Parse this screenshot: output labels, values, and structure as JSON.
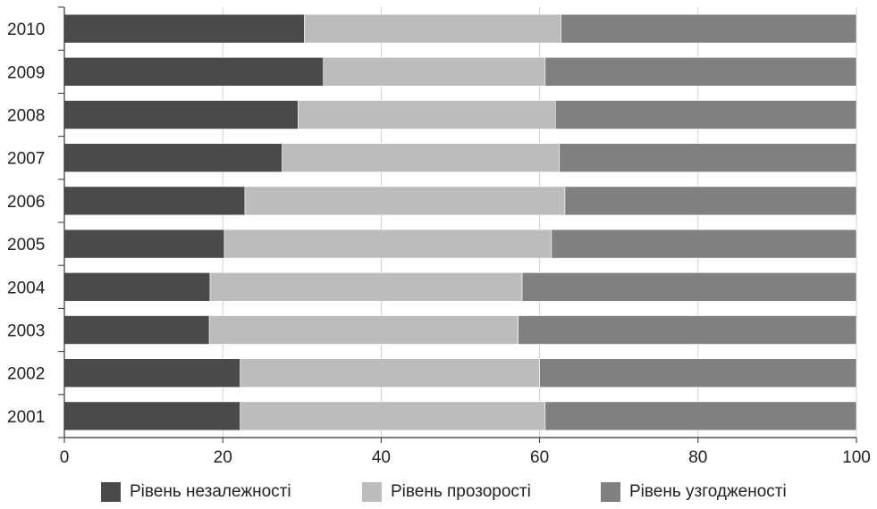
{
  "chart_data": {
    "type": "bar",
    "orientation": "horizontal",
    "stacked": true,
    "categories": [
      "2010",
      "2009",
      "2008",
      "2007",
      "2006",
      "2005",
      "2004",
      "2003",
      "2002",
      "2001"
    ],
    "series": [
      {
        "name": "Рівень незалежності",
        "color": "#4a4a4a",
        "values": [
          30.3,
          32.7,
          29.5,
          27.5,
          22.8,
          20.2,
          18.4,
          18.3,
          22.2,
          22.2
        ]
      },
      {
        "name": "Рівень прозорості",
        "color": "#bcbcbc",
        "values": [
          32.4,
          28.0,
          32.5,
          35.0,
          40.4,
          41.3,
          39.4,
          39.0,
          37.8,
          38.5
        ]
      },
      {
        "name": "Рівень узгодженості",
        "color": "#808080",
        "values": [
          37.3,
          39.3,
          38.0,
          37.5,
          36.8,
          38.5,
          42.2,
          42.7,
          40.0,
          39.3
        ]
      }
    ],
    "x_ticks": [
      "0",
      "20",
      "40",
      "60",
      "80",
      "100"
    ],
    "xlim": [
      0,
      100
    ],
    "x_unit": "%",
    "grid": true,
    "legend_position": "bottom"
  }
}
